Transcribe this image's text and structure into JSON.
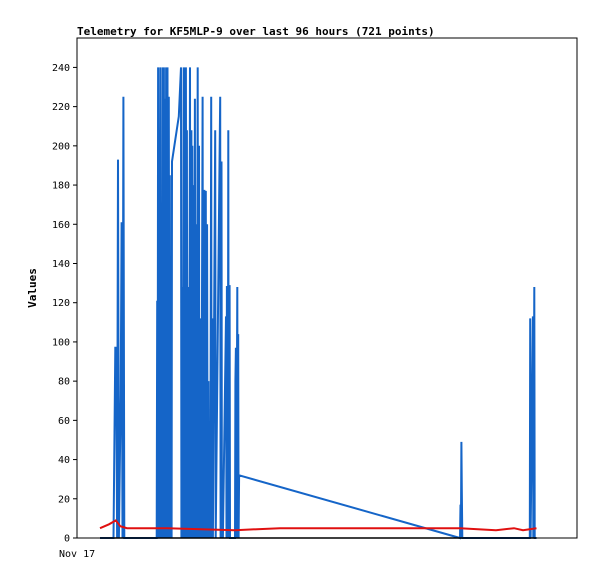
{
  "chart_data": {
    "type": "line",
    "title": "Telemetry for KF5MLP-9 over last 96 hours (721 points)",
    "ylabel": "Values",
    "xlabel": "",
    "x_tick_labels": [
      "Nov 17"
    ],
    "ylim": [
      0,
      255
    ],
    "y_ticks": [
      0,
      20,
      40,
      60,
      80,
      100,
      120,
      140,
      160,
      180,
      200,
      220,
      240
    ],
    "grid": false,
    "legend": "none",
    "colors": {
      "series_blue": "#1565c8",
      "series_red": "#e01010",
      "series_black": "#000000",
      "frame": "#000000"
    },
    "series": [
      {
        "color": "#1565c8",
        "points": [
          [
            0.0,
            0
          ],
          [
            0.03,
            0
          ],
          [
            0.034,
            97
          ],
          [
            0.036,
            97
          ],
          [
            0.038,
            0
          ],
          [
            0.04,
            193
          ],
          [
            0.042,
            0
          ],
          [
            0.046,
            73
          ],
          [
            0.048,
            161
          ],
          [
            0.05,
            0
          ],
          [
            0.052,
            225
          ],
          [
            0.054,
            0
          ],
          [
            0.06,
            0
          ],
          [
            0.126,
            0
          ],
          [
            0.127,
            121
          ],
          [
            0.128,
            0
          ],
          [
            0.129,
            240
          ],
          [
            0.13,
            0
          ],
          [
            0.131,
            208
          ],
          [
            0.132,
            0
          ],
          [
            0.134,
            240
          ],
          [
            0.135,
            0
          ],
          [
            0.137,
            128
          ],
          [
            0.138,
            0
          ],
          [
            0.139,
            240
          ],
          [
            0.14,
            0
          ],
          [
            0.142,
            240
          ],
          [
            0.143,
            0
          ],
          [
            0.145,
            224
          ],
          [
            0.146,
            0
          ],
          [
            0.147,
            240
          ],
          [
            0.148,
            0
          ],
          [
            0.15,
            240
          ],
          [
            0.151,
            0
          ],
          [
            0.153,
            225
          ],
          [
            0.154,
            0
          ],
          [
            0.155,
            185
          ],
          [
            0.156,
            0
          ],
          [
            0.157,
            113
          ],
          [
            0.158,
            82
          ],
          [
            0.159,
            0
          ],
          [
            0.16,
            192
          ],
          [
            0.175,
            215
          ],
          [
            0.18,
            240
          ],
          [
            0.181,
            0
          ],
          [
            0.183,
            128
          ],
          [
            0.184,
            0
          ],
          [
            0.186,
            240
          ],
          [
            0.187,
            0
          ],
          [
            0.189,
            240
          ],
          [
            0.19,
            0
          ],
          [
            0.191,
            240
          ],
          [
            0.192,
            0
          ],
          [
            0.193,
            208
          ],
          [
            0.194,
            0
          ],
          [
            0.195,
            32
          ],
          [
            0.196,
            0
          ],
          [
            0.197,
            128
          ],
          [
            0.198,
            0
          ],
          [
            0.2,
            240
          ],
          [
            0.201,
            0
          ],
          [
            0.203,
            208
          ],
          [
            0.204,
            0
          ],
          [
            0.205,
            200
          ],
          [
            0.206,
            0
          ],
          [
            0.208,
            180
          ],
          [
            0.209,
            0
          ],
          [
            0.211,
            224
          ],
          [
            0.212,
            0
          ],
          [
            0.214,
            160
          ],
          [
            0.215,
            0
          ],
          [
            0.217,
            240
          ],
          [
            0.218,
            0
          ],
          [
            0.22,
            200
          ],
          [
            0.221,
            0
          ],
          [
            0.224,
            112
          ],
          [
            0.225,
            0
          ],
          [
            0.228,
            225
          ],
          [
            0.229,
            0
          ],
          [
            0.231,
            177
          ],
          [
            0.232,
            177
          ],
          [
            0.233,
            0
          ],
          [
            0.235,
            177
          ],
          [
            0.236,
            0
          ],
          [
            0.238,
            160
          ],
          [
            0.239,
            0
          ],
          [
            0.241,
            80
          ],
          [
            0.242,
            0
          ],
          [
            0.244,
            53
          ],
          [
            0.245,
            0
          ],
          [
            0.247,
            225
          ],
          [
            0.248,
            0
          ],
          [
            0.25,
            112
          ],
          [
            0.251,
            0
          ],
          [
            0.256,
            208
          ],
          [
            0.257,
            0
          ],
          [
            0.267,
            225
          ],
          [
            0.268,
            0
          ],
          [
            0.27,
            192
          ],
          [
            0.271,
            0
          ],
          [
            0.272,
            32
          ],
          [
            0.273,
            0
          ],
          [
            0.28,
            113
          ],
          [
            0.281,
            0
          ],
          [
            0.282,
            128
          ],
          [
            0.283,
            128
          ],
          [
            0.284,
            0
          ],
          [
            0.285,
            208
          ],
          [
            0.286,
            0
          ],
          [
            0.288,
            129
          ],
          [
            0.289,
            0
          ],
          [
            0.3,
            0
          ],
          [
            0.301,
            80
          ],
          [
            0.302,
            97
          ],
          [
            0.303,
            0
          ],
          [
            0.305,
            128
          ],
          [
            0.306,
            0
          ],
          [
            0.307,
            104
          ],
          [
            0.308,
            0
          ],
          [
            0.309,
            32
          ],
          [
            0.8,
            0
          ],
          [
            0.801,
            17
          ],
          [
            0.802,
            0
          ],
          [
            0.803,
            49
          ],
          [
            0.804,
            25
          ],
          [
            0.805,
            0
          ],
          [
            0.955,
            0
          ],
          [
            0.956,
            112
          ],
          [
            0.957,
            0
          ],
          [
            0.962,
            113
          ],
          [
            0.963,
            0
          ],
          [
            0.965,
            128
          ],
          [
            0.966,
            0
          ],
          [
            0.97,
            0
          ]
        ]
      },
      {
        "color": "#e01010",
        "points": [
          [
            0.0,
            5
          ],
          [
            0.02,
            7
          ],
          [
            0.035,
            9
          ],
          [
            0.045,
            6
          ],
          [
            0.06,
            5
          ],
          [
            0.07,
            5
          ],
          [
            0.15,
            5
          ],
          [
            0.3,
            4
          ],
          [
            0.4,
            5
          ],
          [
            0.6,
            5
          ],
          [
            0.8,
            5
          ],
          [
            0.88,
            4
          ],
          [
            0.92,
            5
          ],
          [
            0.94,
            4
          ],
          [
            0.97,
            5
          ]
        ]
      },
      {
        "color": "#000000",
        "points": [
          [
            0.0,
            0
          ],
          [
            0.97,
            0
          ]
        ]
      }
    ]
  }
}
